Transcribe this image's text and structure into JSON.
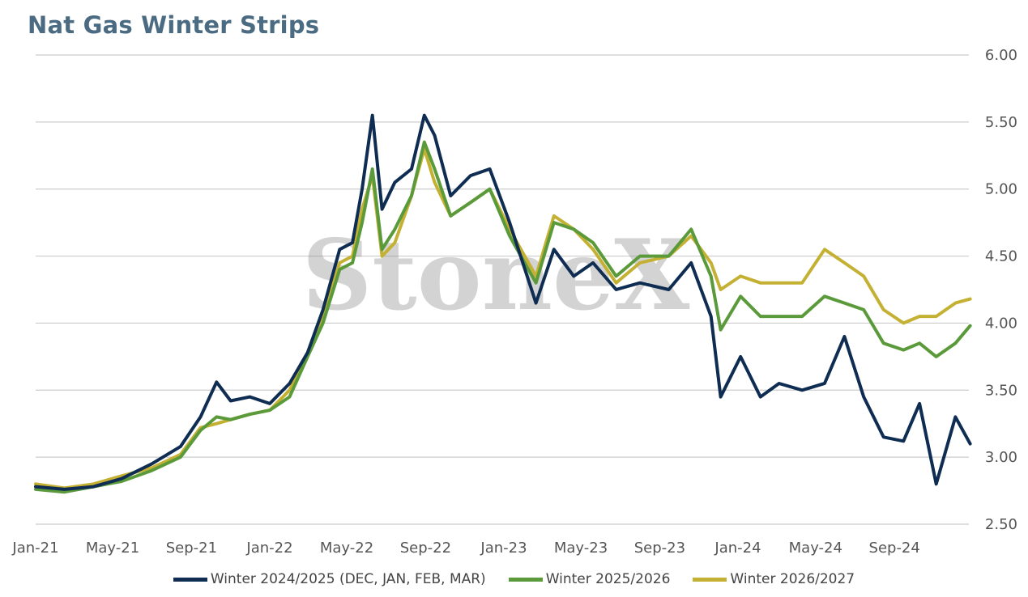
{
  "title": "Nat Gas Winter Strips",
  "watermark": "StoneX",
  "chart_data": {
    "type": "line",
    "title": "Nat Gas Winter Strips",
    "xlabel": "",
    "ylabel": "",
    "ylim": [
      2.5,
      6.0
    ],
    "y_ticks": [
      "2.50",
      "3.00",
      "3.50",
      "4.00",
      "4.50",
      "5.00",
      "5.50",
      "6.00"
    ],
    "x_ticks": [
      "Jan-21",
      "May-21",
      "Sep-21",
      "Jan-22",
      "May-22",
      "Sep-22",
      "Jan-23",
      "May-23",
      "Sep-23",
      "Jan-24",
      "May-24",
      "Sep-24"
    ],
    "y_axis_side": "right",
    "grid": true,
    "legend_position": "bottom",
    "colors": {
      "s1": "#0f2d52",
      "s2": "#5a9a3a",
      "s3": "#c4b133",
      "grid": "#cccccc"
    },
    "series": [
      {
        "name": "Winter 2024/2025 (DEC, JAN, FEB, MAR)",
        "color": "#0f2d52",
        "points": [
          [
            "2021-01-01",
            2.78
          ],
          [
            "2021-02-15",
            2.76
          ],
          [
            "2021-04-01",
            2.78
          ],
          [
            "2021-05-15",
            2.84
          ],
          [
            "2021-07-01",
            2.95
          ],
          [
            "2021-08-15",
            3.08
          ],
          [
            "2021-09-15",
            3.3
          ],
          [
            "2021-10-10",
            3.56
          ],
          [
            "2021-11-01",
            3.42
          ],
          [
            "2021-12-01",
            3.45
          ],
          [
            "2022-01-01",
            3.4
          ],
          [
            "2022-02-01",
            3.55
          ],
          [
            "2022-03-01",
            3.78
          ],
          [
            "2022-03-25",
            4.1
          ],
          [
            "2022-04-20",
            4.55
          ],
          [
            "2022-05-10",
            4.6
          ],
          [
            "2022-05-25",
            5.0
          ],
          [
            "2022-06-10",
            5.55
          ],
          [
            "2022-06-25",
            4.85
          ],
          [
            "2022-07-15",
            5.05
          ],
          [
            "2022-08-10",
            5.15
          ],
          [
            "2022-08-30",
            5.55
          ],
          [
            "2022-09-15",
            5.4
          ],
          [
            "2022-10-10",
            4.95
          ],
          [
            "2022-11-10",
            5.1
          ],
          [
            "2022-12-10",
            5.15
          ],
          [
            "2023-01-10",
            4.75
          ],
          [
            "2023-02-20",
            4.15
          ],
          [
            "2023-03-20",
            4.55
          ],
          [
            "2023-04-20",
            4.35
          ],
          [
            "2023-05-20",
            4.45
          ],
          [
            "2023-06-25",
            4.25
          ],
          [
            "2023-08-01",
            4.3
          ],
          [
            "2023-09-15",
            4.25
          ],
          [
            "2023-10-20",
            4.45
          ],
          [
            "2023-11-20",
            4.05
          ],
          [
            "2023-12-05",
            3.45
          ],
          [
            "2024-01-05",
            3.75
          ],
          [
            "2024-02-05",
            3.45
          ],
          [
            "2024-03-05",
            3.55
          ],
          [
            "2024-04-10",
            3.5
          ],
          [
            "2024-05-15",
            3.55
          ],
          [
            "2024-06-15",
            3.9
          ],
          [
            "2024-07-15",
            3.45
          ],
          [
            "2024-08-15",
            3.15
          ],
          [
            "2024-09-15",
            3.12
          ],
          [
            "2024-10-10",
            3.4
          ],
          [
            "2024-11-05",
            2.8
          ],
          [
            "2024-12-05",
            3.3
          ],
          [
            "2024-12-28",
            3.1
          ]
        ]
      },
      {
        "name": "Winter 2025/2026",
        "color": "#5a9a3a",
        "points": [
          [
            "2021-01-01",
            2.76
          ],
          [
            "2021-02-15",
            2.74
          ],
          [
            "2021-04-01",
            2.78
          ],
          [
            "2021-05-15",
            2.82
          ],
          [
            "2021-07-01",
            2.9
          ],
          [
            "2021-08-15",
            3.0
          ],
          [
            "2021-09-15",
            3.2
          ],
          [
            "2021-10-10",
            3.3
          ],
          [
            "2021-11-01",
            3.28
          ],
          [
            "2021-12-01",
            3.32
          ],
          [
            "2022-01-01",
            3.35
          ],
          [
            "2022-02-01",
            3.45
          ],
          [
            "2022-03-01",
            3.75
          ],
          [
            "2022-03-25",
            4.0
          ],
          [
            "2022-04-20",
            4.4
          ],
          [
            "2022-05-10",
            4.45
          ],
          [
            "2022-05-25",
            4.75
          ],
          [
            "2022-06-10",
            5.15
          ],
          [
            "2022-06-25",
            4.55
          ],
          [
            "2022-07-15",
            4.7
          ],
          [
            "2022-08-10",
            4.95
          ],
          [
            "2022-08-30",
            5.35
          ],
          [
            "2022-09-15",
            5.15
          ],
          [
            "2022-10-10",
            4.8
          ],
          [
            "2022-11-10",
            4.9
          ],
          [
            "2022-12-10",
            5.0
          ],
          [
            "2023-01-10",
            4.65
          ],
          [
            "2023-02-20",
            4.3
          ],
          [
            "2023-03-20",
            4.75
          ],
          [
            "2023-04-20",
            4.7
          ],
          [
            "2023-05-20",
            4.6
          ],
          [
            "2023-06-25",
            4.35
          ],
          [
            "2023-08-01",
            4.5
          ],
          [
            "2023-09-15",
            4.5
          ],
          [
            "2023-10-20",
            4.7
          ],
          [
            "2023-11-20",
            4.35
          ],
          [
            "2023-12-05",
            3.95
          ],
          [
            "2024-01-05",
            4.2
          ],
          [
            "2024-02-05",
            4.05
          ],
          [
            "2024-03-05",
            4.05
          ],
          [
            "2024-04-10",
            4.05
          ],
          [
            "2024-05-15",
            4.2
          ],
          [
            "2024-06-15",
            4.15
          ],
          [
            "2024-07-15",
            4.1
          ],
          [
            "2024-08-15",
            3.85
          ],
          [
            "2024-09-15",
            3.8
          ],
          [
            "2024-10-10",
            3.85
          ],
          [
            "2024-11-05",
            3.75
          ],
          [
            "2024-12-05",
            3.85
          ],
          [
            "2024-12-28",
            3.98
          ]
        ]
      },
      {
        "name": "Winter 2026/2027",
        "color": "#c4b133",
        "points": [
          [
            "2021-01-01",
            2.8
          ],
          [
            "2021-02-15",
            2.77
          ],
          [
            "2021-04-01",
            2.8
          ],
          [
            "2021-05-15",
            2.86
          ],
          [
            "2021-07-01",
            2.92
          ],
          [
            "2021-08-15",
            3.02
          ],
          [
            "2021-09-15",
            3.22
          ],
          [
            "2021-10-10",
            3.25
          ],
          [
            "2021-11-01",
            3.28
          ],
          [
            "2021-12-01",
            3.32
          ],
          [
            "2022-01-01",
            3.35
          ],
          [
            "2022-02-01",
            3.5
          ],
          [
            "2022-03-01",
            3.78
          ],
          [
            "2022-03-25",
            4.05
          ],
          [
            "2022-04-20",
            4.45
          ],
          [
            "2022-05-10",
            4.5
          ],
          [
            "2022-05-25",
            4.85
          ],
          [
            "2022-06-10",
            5.1
          ],
          [
            "2022-06-25",
            4.5
          ],
          [
            "2022-07-15",
            4.6
          ],
          [
            "2022-08-10",
            4.95
          ],
          [
            "2022-08-30",
            5.3
          ],
          [
            "2022-09-15",
            5.05
          ],
          [
            "2022-10-10",
            4.8
          ],
          [
            "2022-11-10",
            4.9
          ],
          [
            "2022-12-10",
            5.0
          ],
          [
            "2023-01-10",
            4.7
          ],
          [
            "2023-02-20",
            4.35
          ],
          [
            "2023-03-20",
            4.8
          ],
          [
            "2023-04-20",
            4.7
          ],
          [
            "2023-05-20",
            4.55
          ],
          [
            "2023-06-25",
            4.3
          ],
          [
            "2023-08-01",
            4.45
          ],
          [
            "2023-09-15",
            4.5
          ],
          [
            "2023-10-20",
            4.65
          ],
          [
            "2023-11-20",
            4.45
          ],
          [
            "2023-12-05",
            4.25
          ],
          [
            "2024-01-05",
            4.35
          ],
          [
            "2024-02-05",
            4.3
          ],
          [
            "2024-03-05",
            4.3
          ],
          [
            "2024-04-10",
            4.3
          ],
          [
            "2024-05-15",
            4.55
          ],
          [
            "2024-06-15",
            4.45
          ],
          [
            "2024-07-15",
            4.35
          ],
          [
            "2024-08-15",
            4.1
          ],
          [
            "2024-09-15",
            4.0
          ],
          [
            "2024-10-10",
            4.05
          ],
          [
            "2024-11-05",
            4.05
          ],
          [
            "2024-12-05",
            4.15
          ],
          [
            "2024-12-28",
            4.18
          ]
        ]
      }
    ]
  }
}
